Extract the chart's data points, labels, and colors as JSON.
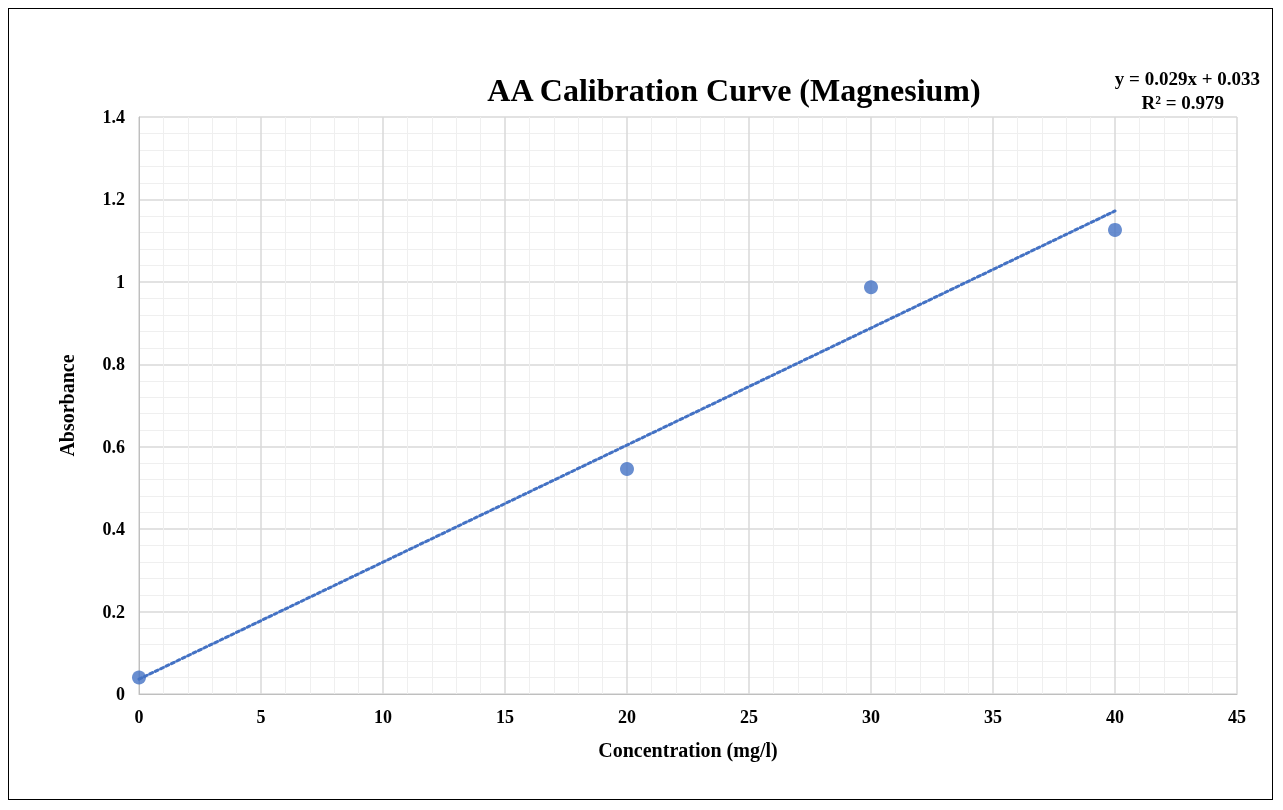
{
  "chart_data": {
    "type": "scatter",
    "title": "AA Calibration Curve (Magnesium)",
    "xlabel": "Concentration (mg/l)",
    "ylabel": "Absorbance",
    "annotations": [
      "y = 0.029x + 0.033",
      "R² = 0.979"
    ],
    "series": [
      {
        "color": "#4472c4",
        "x": [
          0,
          20,
          30,
          40
        ],
        "values": [
          0.04,
          0.546,
          0.987,
          1.126
        ],
        "marker": "circle"
      },
      {
        "type": "line",
        "color": "#4472c4",
        "x": [
          0,
          40
        ],
        "values": [
          0.036,
          1.172
        ],
        "line_style": "dotted",
        "marker": "none"
      }
    ],
    "xlim": [
      0,
      45
    ],
    "xticks": [
      0,
      5,
      10,
      15,
      20,
      25,
      30,
      35,
      40,
      45
    ],
    "ylim": [
      0,
      1.4
    ],
    "yticks": [
      0,
      0.2,
      0.4,
      0.6,
      0.8,
      1,
      1.2,
      1.4
    ],
    "grid": true
  }
}
